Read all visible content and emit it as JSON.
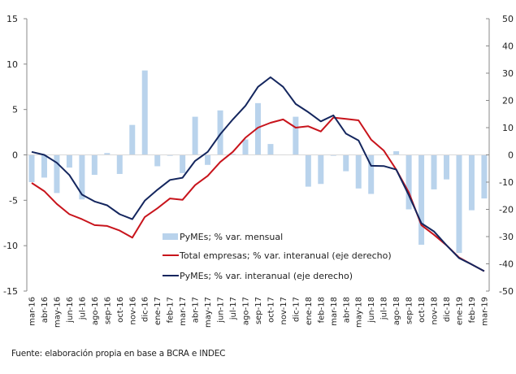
{
  "chart_data": {
    "type": "bar+line",
    "categories": [
      "mar-16",
      "abr-16",
      "may-16",
      "jun-16",
      "jul-16",
      "ago-16",
      "sep-16",
      "oct-16",
      "nov-16",
      "dic-16",
      "ene-17",
      "feb-17",
      "mar-17",
      "abr-17",
      "may-17",
      "jun-17",
      "jul-17",
      "ago-17",
      "sep-17",
      "oct-17",
      "nov-17",
      "dic-17",
      "ene-18",
      "feb-18",
      "mar-18",
      "abr-18",
      "may-18",
      "jun-18",
      "jul-18",
      "ago-18",
      "sep-18",
      "oct-18",
      "nov-18",
      "dic-18",
      "ene-19",
      "feb-19",
      "mar-19"
    ],
    "y_left": {
      "range": [
        -15,
        15
      ],
      "ticks": [
        -15,
        -10,
        -5,
        0,
        5,
        10,
        15
      ]
    },
    "y_right": {
      "range": [
        -50,
        50
      ],
      "ticks": [
        -50,
        -40,
        -30,
        -20,
        -10,
        0,
        10,
        20,
        30,
        40,
        50
      ]
    },
    "grid": false,
    "legend_placement": "bottom-center",
    "series": [
      {
        "name": "PyMEs; % var. mensual",
        "type": "bar",
        "axis": "left",
        "color": "#b9d3ec",
        "values": [
          -3.0,
          -2.5,
          -4.2,
          -1.4,
          -4.9,
          -2.2,
          0.2,
          -2.1,
          3.3,
          9.3,
          -1.25,
          -0.1,
          -2.0,
          4.2,
          -1.1,
          4.9,
          0.1,
          1.7,
          5.7,
          1.2,
          0.05,
          4.2,
          -3.5,
          -3.2,
          -0.1,
          -1.8,
          -3.7,
          -4.3,
          0.05,
          0.4,
          -6.0,
          -9.9,
          -3.8,
          -2.7,
          -10.8,
          -6.1,
          -4.8
        ]
      },
      {
        "name": "Total empresas; % var. interanual (eje derecho)",
        "type": "line",
        "axis": "right",
        "color": "#c8141c",
        "values": [
          -10.3,
          -13.3,
          -18.0,
          -21.8,
          -23.6,
          -25.8,
          -26.1,
          -27.8,
          -30.4,
          -22.8,
          -19.6,
          -16.0,
          -16.5,
          -11.1,
          -7.7,
          -2.6,
          1.1,
          6.3,
          10.0,
          11.8,
          13.0,
          10.0,
          10.5,
          8.6,
          13.7,
          13.2,
          12.7,
          5.6,
          1.6,
          -5.4,
          -13.8,
          -25.8,
          -29.3,
          -33.2,
          -37.7,
          -40.2,
          -42.7
        ]
      },
      {
        "name": "PyMEs; % var. interanual (eje derecho)",
        "type": "line",
        "axis": "right",
        "color": "#14265e",
        "values": [
          1.1,
          0.0,
          -2.9,
          -7.4,
          -14.6,
          -17.1,
          -18.5,
          -21.8,
          -23.6,
          -16.8,
          -12.8,
          -9.2,
          -8.4,
          -2.2,
          1.1,
          7.6,
          13.0,
          18.0,
          25.0,
          28.5,
          25.0,
          18.7,
          15.7,
          12.3,
          14.5,
          7.8,
          5.3,
          -4.0,
          -4.1,
          -5.4,
          -14.8,
          -25.1,
          -28.1,
          -33.2,
          -37.9,
          -40.2,
          -42.7
        ]
      }
    ]
  },
  "source": "Fuente: elaboración propia en base a BCRA e INDEC"
}
